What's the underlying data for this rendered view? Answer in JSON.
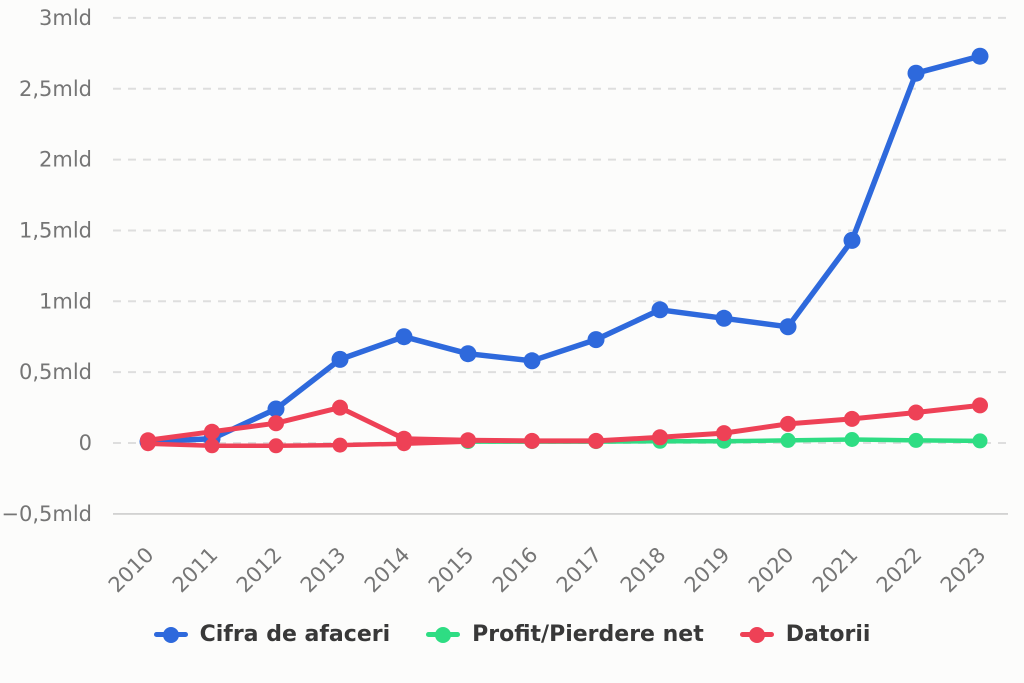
{
  "chart_data": {
    "type": "line",
    "title": "",
    "unit_suffix": "mld",
    "categories": [
      "2010",
      "2011",
      "2012",
      "2013",
      "2014",
      "2015",
      "2016",
      "2017",
      "2018",
      "2019",
      "2020",
      "2021",
      "2022",
      "2023"
    ],
    "y_ticks": [
      {
        "label": "3mld",
        "value": 3
      },
      {
        "label": "2,5mld",
        "value": 2.5
      },
      {
        "label": "2mld",
        "value": 2
      },
      {
        "label": "1,5mld",
        "value": 1.5
      },
      {
        "label": "1mld",
        "value": 1
      },
      {
        "label": "0,5mld",
        "value": 0.5
      },
      {
        "label": "0",
        "value": 0
      },
      {
        "label": "−0,5mld",
        "value": -0.5
      }
    ],
    "ylim": [
      -0.5,
      3
    ],
    "grid": "horizontal-dashed",
    "grid_color": "#dedede",
    "baseline_color": "#cdcdcd",
    "legend_position": "bottom",
    "series": [
      {
        "name": "Cifra de afaceri",
        "color": "#2E69DC",
        "values": [
          0.01,
          0.03,
          0.24,
          0.59,
          0.75,
          0.63,
          0.58,
          0.73,
          0.94,
          0.88,
          0.82,
          1.43,
          2.61,
          2.73
        ]
      },
      {
        "name": "Profit/Pierdere net",
        "color": "#2EDD83",
        "negative_color": "#EE4156",
        "values": [
          -0.005,
          -0.02,
          -0.02,
          -0.015,
          -0.005,
          0.01,
          0.01,
          0.01,
          0.012,
          0.013,
          0.018,
          0.025,
          0.018,
          0.015
        ]
      },
      {
        "name": "Datorii",
        "color": "#EE4156",
        "values": [
          0.02,
          0.08,
          0.14,
          0.25,
          0.03,
          0.02,
          0.015,
          0.015,
          0.04,
          0.07,
          0.135,
          0.17,
          0.215,
          0.265
        ]
      }
    ]
  }
}
